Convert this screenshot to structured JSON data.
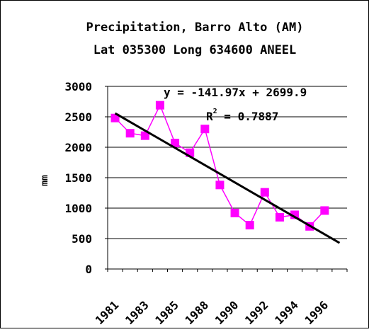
{
  "chart_data": {
    "type": "line",
    "title": "Precipitation, Barro Alto (AM)",
    "subtitle": "Lat 035300 Long 634600 ANEEL",
    "ylabel": "mm",
    "xlabel": "",
    "ylim": [
      0,
      3000
    ],
    "yticks": [
      "0",
      "500",
      "1000",
      "1500",
      "2000",
      "2500",
      "3000"
    ],
    "xtick_labels": [
      "1981",
      "1983",
      "1985",
      "1988",
      "1990",
      "1992",
      "1994",
      "1996"
    ],
    "x": [
      1,
      2,
      3,
      4,
      5,
      6,
      7,
      8,
      9,
      10,
      11,
      12,
      13,
      14,
      15,
      16
    ],
    "series": [
      {
        "values": [
          2480,
          2230,
          2190,
          2690,
          2070,
          1910,
          2300,
          1380,
          920,
          720,
          1260,
          850,
          890,
          700,
          960,
          null
        ]
      }
    ],
    "trendline": {
      "equation": "y = -141.97x + 2699.9",
      "r2_prefix": "R",
      "r2_exponent": "2",
      "r2_value": " = 0.7887"
    },
    "grid": true,
    "legend": "none",
    "colors": {
      "series": "#ff00ff",
      "trend": "#000000",
      "grid": "#000000"
    }
  }
}
